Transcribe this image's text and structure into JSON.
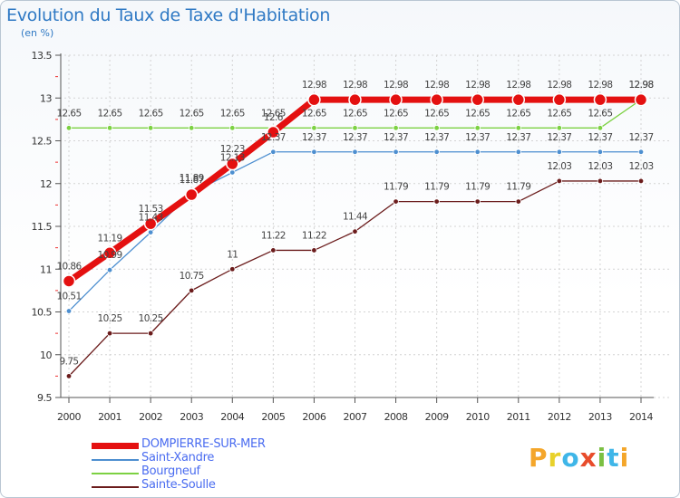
{
  "title": "Evolution du Taux de Taxe d'Habitation",
  "unit": "(en %)",
  "logo": {
    "text": "Proxiti",
    "letters": [
      {
        "ch": "P",
        "color": "#f4a62a"
      },
      {
        "ch": "r",
        "color": "#e8d12b"
      },
      {
        "ch": "o",
        "color": "#3fb6e8"
      },
      {
        "ch": "x",
        "color": "#e84c2b"
      },
      {
        "ch": "i",
        "color": "#7bc043"
      },
      {
        "ch": "t",
        "color": "#3fb6e8"
      },
      {
        "ch": "i",
        "color": "#f4a62a"
      }
    ]
  },
  "chart_data": {
    "type": "line",
    "title": "Evolution du Taux de Taxe d'Habitation",
    "ylabel": "(en %)",
    "xlabel": "",
    "x": [
      "2000",
      "2001",
      "2002",
      "2003",
      "2004",
      "2005",
      "2006",
      "2007",
      "2008",
      "2009",
      "2010",
      "2011",
      "2012",
      "2013",
      "2014"
    ],
    "ylim": [
      9.5,
      13.5
    ],
    "yticks": [
      "9.5",
      "10",
      "10.5",
      "11",
      "11.5",
      "12",
      "12.5",
      "13",
      "13.5"
    ],
    "legend_position": "bottom-left",
    "series": [
      {
        "name": "Sainte-Soulle",
        "color": "#6b1c1c",
        "width": 1.3,
        "marker": 2.8,
        "values": [
          9.75,
          10.25,
          10.25,
          10.75,
          11,
          11.22,
          11.22,
          11.44,
          11.79,
          11.79,
          11.79,
          11.79,
          12.03,
          12.03,
          12.03
        ],
        "labels": [
          "9.75",
          "10.25",
          "10.25",
          "10.75",
          "11",
          "11.22",
          "11.22",
          "11.44",
          "11.79",
          "11.79",
          "11.79",
          "11.79",
          "12.03",
          "12.03",
          "12.03"
        ]
      },
      {
        "name": "Bourgneuf",
        "color": "#7cd142",
        "width": 1.3,
        "marker": 2.8,
        "values": [
          12.65,
          12.65,
          12.65,
          12.65,
          12.65,
          12.65,
          12.65,
          12.65,
          12.65,
          12.65,
          12.65,
          12.65,
          12.65,
          12.65,
          12.98
        ],
        "labels": [
          "12.65",
          "12.65",
          "12.65",
          "12.65",
          "12.65",
          "12.65",
          "12.65",
          "12.65",
          "12.65",
          "12.65",
          "12.65",
          "12.65",
          "12.65",
          "12.65",
          "12.98"
        ]
      },
      {
        "name": "Saint-Xandre",
        "color": "#4d8fd0",
        "width": 1.3,
        "marker": 2.8,
        "values": [
          10.51,
          10.99,
          11.43,
          11.89,
          12.13,
          12.37,
          12.37,
          12.37,
          12.37,
          12.37,
          12.37,
          12.37,
          12.37,
          12.37,
          12.37
        ],
        "labels": [
          "10.51",
          "10.99",
          "11.43",
          "11.89",
          "12.13",
          "12.37",
          "12.37",
          "12.37",
          "12.37",
          "12.37",
          "12.37",
          "12.37",
          "12.37",
          "12.37",
          "12.37"
        ]
      },
      {
        "name": "DOMPIERRE-SUR-MER",
        "color": "#e41010",
        "width": 7,
        "marker": 6.5,
        "values": [
          10.86,
          11.19,
          11.53,
          11.87,
          12.23,
          12.6,
          12.98,
          12.98,
          12.98,
          12.98,
          12.98,
          12.98,
          12.98,
          12.98,
          12.98
        ],
        "labels": [
          "10.86",
          "11.19",
          "11.53",
          "11.87",
          "12.23",
          "12.6",
          "12.98",
          "12.98",
          "12.98",
          "12.98",
          "12.98",
          "12.98",
          "12.98",
          "12.98",
          "12.98"
        ]
      }
    ]
  }
}
